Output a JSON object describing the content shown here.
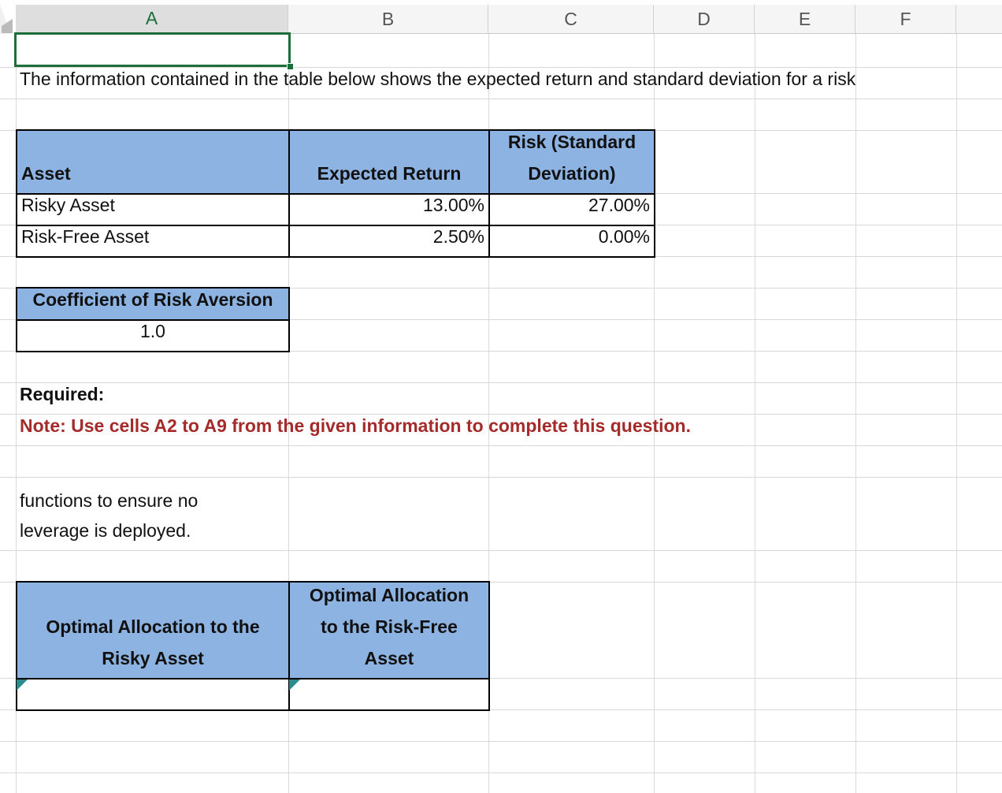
{
  "column_headers": [
    "A",
    "B",
    "C",
    "D",
    "E",
    "F"
  ],
  "intro": "The information contained in the table below shows the expected return and standard deviation for a risk",
  "returns_table": {
    "headers": [
      "Asset",
      "Expected Return",
      "Risk (Standard Deviation)"
    ],
    "rows": [
      [
        "Risky Asset",
        "13.00%",
        "27.00%"
      ],
      [
        "Risk-Free Asset",
        "2.50%",
        "0.00%"
      ]
    ]
  },
  "risk_aversion": {
    "label": "Coefficient of Risk Aversion",
    "value": "1.0"
  },
  "required": "Required:",
  "note": "Note: Use cells A2 to A9 from the given information to complete this question.",
  "instructions": [
    "functions to ensure no",
    "leverage is deployed."
  ],
  "answer_table": {
    "headers": [
      "Optimal Allocation to the Risky Asset",
      "Optimal Allocation to the Risk-Free Asset"
    ]
  }
}
